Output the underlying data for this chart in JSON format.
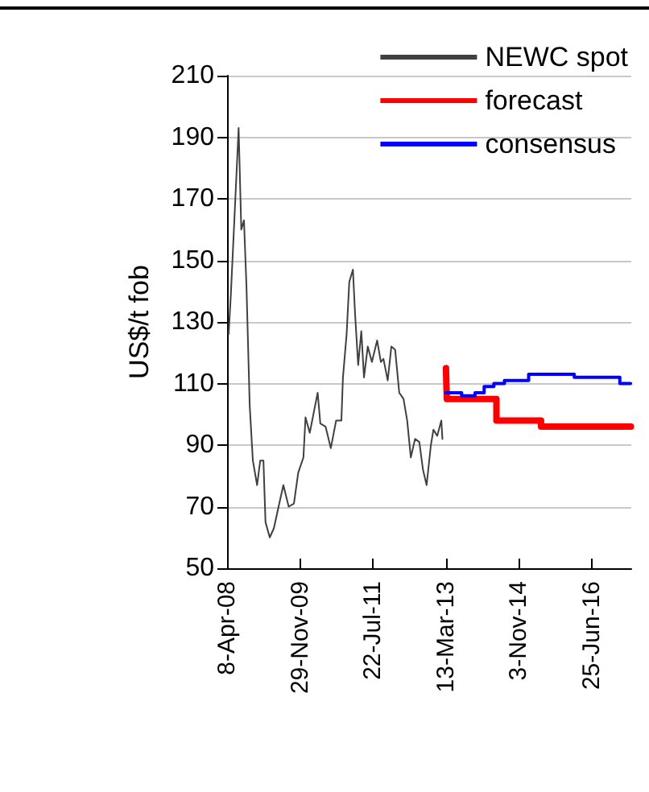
{
  "chart_data": {
    "type": "line",
    "ylabel": "US$/t fob",
    "legend": "top right",
    "grid": "y",
    "marker": "none",
    "line_style": "solid",
    "xlim": [
      "2008-04-08",
      "2017-05-15"
    ],
    "xticks": [
      {
        "value": "2008-04-08",
        "label": "8-Apr-08"
      },
      {
        "value": "2009-11-29",
        "label": "29-Nov-09"
      },
      {
        "value": "2011-07-22",
        "label": "22-Jul-11"
      },
      {
        "value": "2013-03-13",
        "label": "13-Mar-13"
      },
      {
        "value": "2014-11-03",
        "label": "3-Nov-14"
      },
      {
        "value": "2016-06-25",
        "label": "25-Jun-16"
      }
    ],
    "ylim": [
      50,
      210
    ],
    "yticks": [
      50,
      70,
      90,
      110,
      130,
      150,
      170,
      190,
      210
    ],
    "series": [
      {
        "name": "NEWC spot",
        "color": "#404040",
        "x": [
          "2008-04-21",
          "2008-05-08",
          "2008-06-08",
          "2008-07-12",
          "2008-08-03",
          "2008-08-25",
          "2008-09-15",
          "2008-10-11",
          "2008-11-06",
          "2008-12-11",
          "2009-01-06",
          "2009-02-01",
          "2009-02-18",
          "2009-03-25",
          "2009-04-28",
          "2009-06-11",
          "2009-07-15",
          "2009-08-28",
          "2009-10-10",
          "2009-11-14",
          "2009-12-27",
          "2010-01-13",
          "2010-02-17",
          "2010-04-23",
          "2010-05-15",
          "2010-06-27",
          "2010-08-09",
          "2010-09-22",
          "2010-11-04",
          "2010-11-17",
          "2010-12-17",
          "2011-01-08",
          "2011-02-07",
          "2011-02-24",
          "2011-03-22",
          "2011-04-17",
          "2011-05-09",
          "2011-06-09",
          "2011-07-13",
          "2011-08-25",
          "2011-09-25",
          "2011-10-16",
          "2011-11-20",
          "2011-12-20",
          "2012-01-20",
          "2012-02-23",
          "2012-03-29",
          "2012-04-28",
          "2012-05-28",
          "2012-07-02",
          "2012-08-06",
          "2012-09-05",
          "2012-10-05",
          "2012-11-09",
          "2012-11-30",
          "2012-12-31",
          "2013-02-03",
          "2013-02-12"
        ],
        "values": [
          126,
          138,
          164,
          193,
          160,
          163,
          141,
          103,
          85,
          77,
          85,
          85,
          65,
          60,
          63,
          71,
          77,
          70,
          71,
          81,
          86,
          99,
          94,
          107,
          97,
          96,
          89,
          98,
          98,
          112,
          126,
          143,
          147,
          133,
          116,
          127,
          112,
          122,
          117,
          124,
          117,
          118,
          111,
          122,
          121,
          107,
          105,
          98,
          86,
          92,
          91,
          82,
          77,
          90,
          95,
          93,
          98,
          92
        ]
      },
      {
        "name": "forecast",
        "type": "step",
        "color": "#ff0000",
        "x": [
          "2013-03-13",
          "2013-03-20",
          "2014-05-02",
          "2015-05-04",
          "2017-05-12"
        ],
        "values": [
          115,
          105,
          98,
          96,
          96
        ]
      },
      {
        "name": "consensus",
        "type": "step",
        "color": "#0000ff",
        "x": [
          "2013-03-13",
          "2013-07-20",
          "2013-11-07",
          "2014-01-21",
          "2014-04-11",
          "2014-07-07",
          "2015-01-22",
          "2016-02-01",
          "2017-02-10",
          "2017-05-09"
        ],
        "values": [
          107,
          106,
          107,
          109,
          110,
          111,
          113,
          112,
          110,
          110
        ]
      }
    ]
  }
}
